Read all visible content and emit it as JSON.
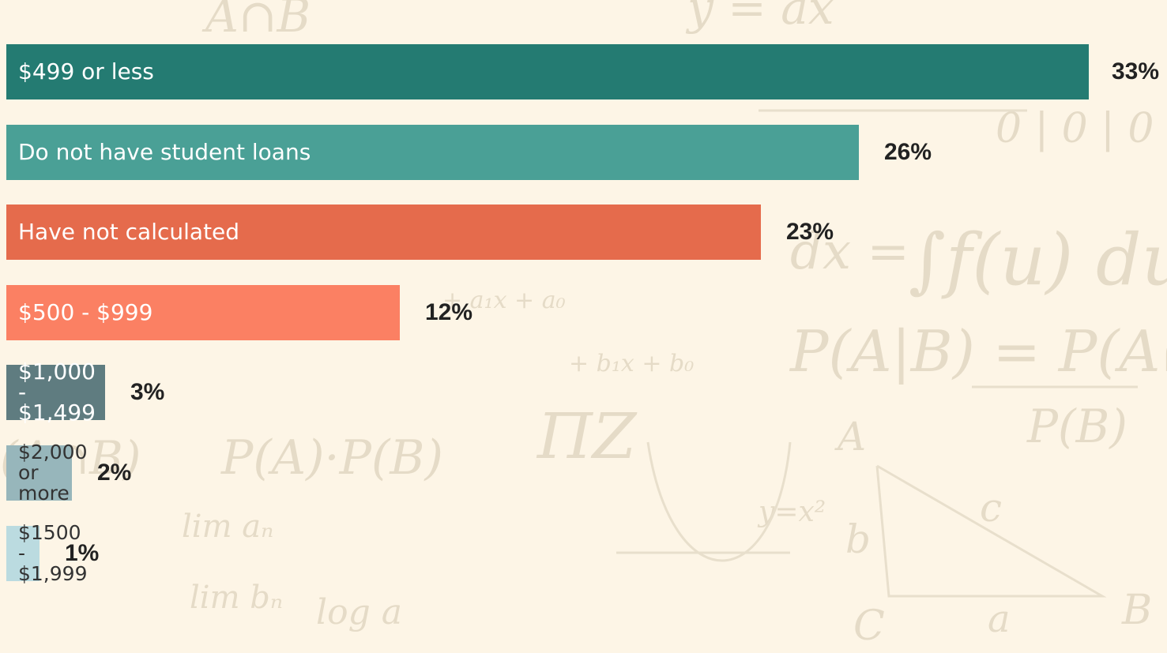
{
  "chart_data": {
    "type": "bar",
    "orientation": "horizontal",
    "title": "",
    "xlabel": "",
    "ylabel": "",
    "xlim": [
      0,
      33
    ],
    "grid": false,
    "legend": "none",
    "categories": [
      "$499 or less",
      "Do not have student loans",
      "Have not calculated",
      "$500 - $999",
      "$1,000 - $1,499",
      "$2,000\nor more",
      "$1500 -\n$1,999"
    ],
    "values": [
      33,
      26,
      23,
      12,
      3,
      2,
      1
    ],
    "value_labels": [
      "33%",
      "26%",
      "23%",
      "12%",
      "3%",
      "2%",
      "1%"
    ],
    "colors": [
      "#247b72",
      "#4aa096",
      "#e56b4c",
      "#fb8063",
      "#5f7c80",
      "#97b6bb",
      "#bbdbe0"
    ],
    "label_colors": [
      "#ffffff",
      "#ffffff",
      "#ffffff",
      "#ffffff",
      "#ffffff",
      "#333333",
      "#333333"
    ]
  }
}
